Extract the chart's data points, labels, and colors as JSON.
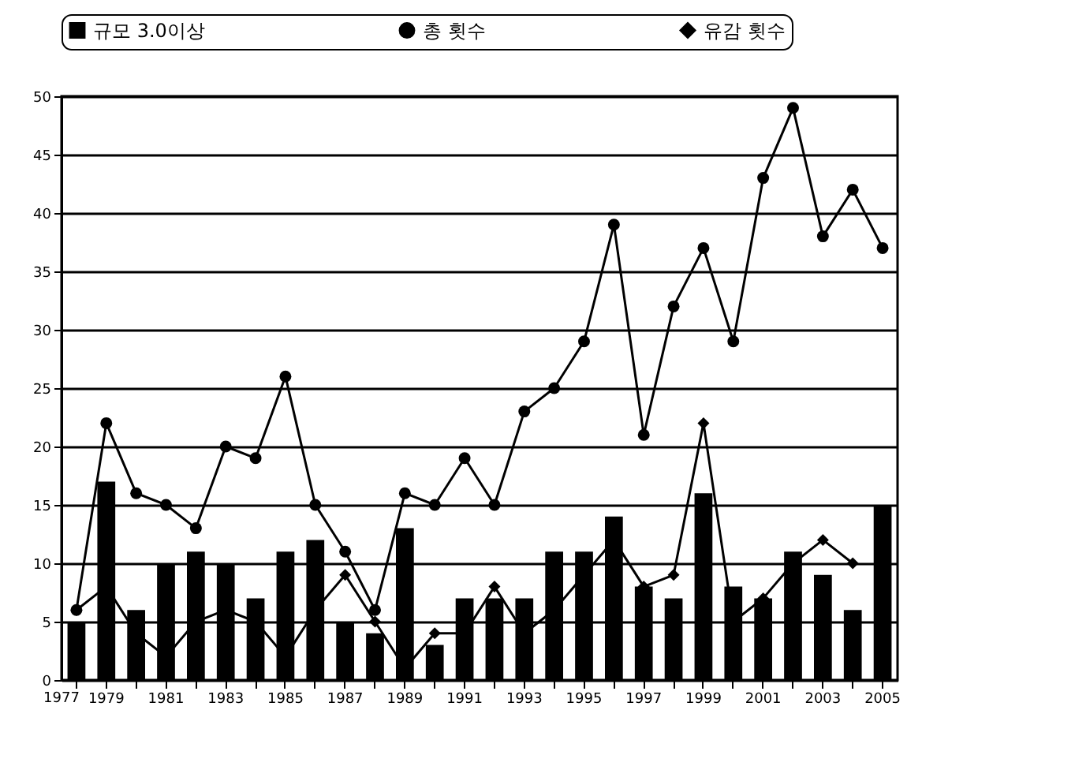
{
  "chart_data": {
    "type": "bar",
    "categories": [
      null,
      "1979",
      null,
      "1981",
      null,
      "1983",
      null,
      "1985",
      null,
      "1987",
      null,
      "1989",
      null,
      "1991",
      null,
      "1993",
      null,
      "1995",
      null,
      "1997",
      null,
      "1999",
      null,
      "2001",
      null,
      "2003",
      null,
      "2005"
    ],
    "annotations": [
      "1977"
    ],
    "series": [
      {
        "name": "규모 3.0이상",
        "color": "#000000",
        "values": [
          5,
          17,
          6,
          10,
          11,
          10,
          7,
          11,
          12,
          5,
          4,
          13,
          3,
          7,
          7,
          7,
          11,
          11,
          14,
          8,
          7,
          16,
          8,
          7,
          11,
          9,
          6,
          15
        ]
      },
      {
        "name": "총 횟수",
        "type": "line",
        "marker": "circle",
        "color": "#000000",
        "values": [
          6,
          22,
          16,
          15,
          13,
          20,
          19,
          26,
          15,
          11,
          6,
          16,
          15,
          19,
          15,
          23,
          25,
          29,
          39,
          21,
          32,
          37,
          29,
          43,
          49,
          38,
          42,
          37
        ]
      },
      {
        "name": "유감 횟수",
        "type": "line",
        "marker": "diamond",
        "color": "#000000",
        "values": [
          6,
          8,
          4,
          2,
          5,
          6,
          5,
          2,
          6,
          9,
          5,
          1,
          4,
          4,
          8,
          4,
          6,
          9,
          12,
          8,
          9,
          22,
          5,
          7,
          10,
          12,
          10,
          null
        ]
      }
    ],
    "ylim": [
      0,
      50
    ],
    "yticks": [
      0,
      5,
      10,
      15,
      20,
      25,
      30,
      35,
      40,
      45,
      50
    ],
    "grid": "y",
    "legend": "top",
    "line_style": "solid"
  }
}
